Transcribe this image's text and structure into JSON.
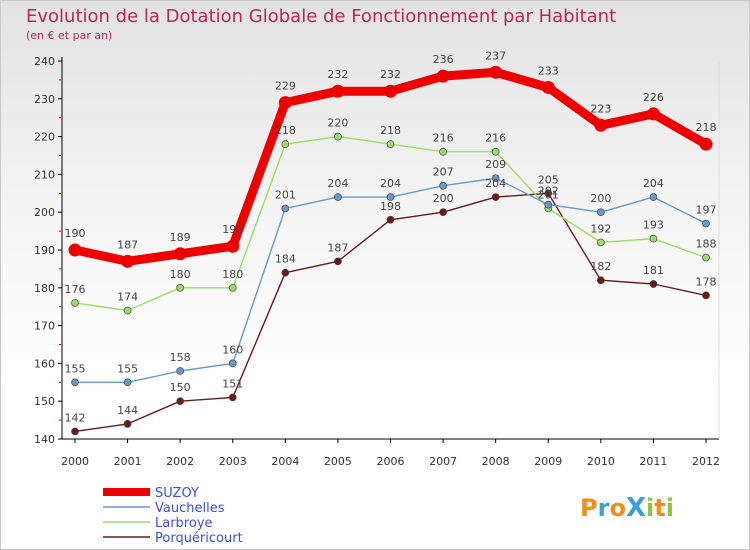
{
  "chart_data": {
    "type": "line",
    "title": "Evolution de la Dotation Globale de Fonctionnement par Habitant",
    "subtitle": "(en € et par an)",
    "xlabel": "",
    "ylabel": "",
    "x": [
      "2000",
      "2001",
      "2002",
      "2003",
      "2004",
      "2005",
      "2006",
      "2007",
      "2008",
      "2009",
      "2010",
      "2011",
      "2012"
    ],
    "ylim": [
      140,
      240
    ],
    "yticks": [
      140,
      150,
      160,
      170,
      180,
      190,
      200,
      210,
      220,
      230,
      240
    ],
    "grid": false,
    "legend_position": "bottom-left",
    "series": [
      {
        "name": "SUZOY",
        "color": "#ee0000",
        "values": [
          190,
          187,
          189,
          191,
          229,
          232,
          232,
          236,
          237,
          233,
          223,
          226,
          218
        ]
      },
      {
        "name": "Vauchelles",
        "color": "#6699cc",
        "values": [
          155,
          155,
          158,
          160,
          201,
          204,
          204,
          207,
          209,
          202,
          200,
          204,
          197
        ]
      },
      {
        "name": "Larbroye",
        "color": "#99dd66",
        "values": [
          176,
          174,
          180,
          180,
          218,
          220,
          218,
          216,
          216,
          201,
          192,
          193,
          188
        ]
      },
      {
        "name": "Porquéricourt",
        "color": "#6b1a1a",
        "values": [
          142,
          144,
          150,
          151,
          184,
          187,
          198,
          200,
          204,
          205,
          182,
          181,
          178
        ]
      }
    ]
  },
  "logo": {
    "text": "ProXiti",
    "colors": [
      "#f28c1e",
      "#3aa0d8",
      "#f28c1e",
      "#3aa0d8",
      "#8cc63f",
      "#f28c1e",
      "#8cc63f"
    ]
  }
}
